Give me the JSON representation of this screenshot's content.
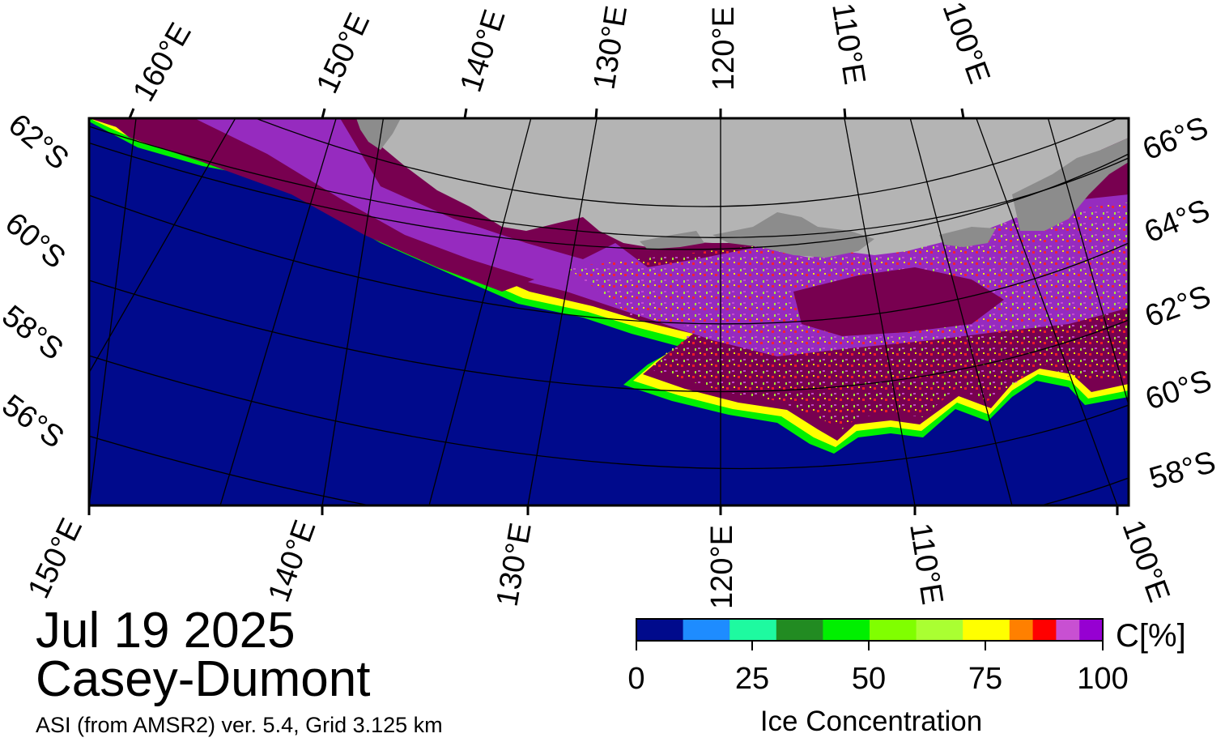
{
  "title": {
    "date": "Jul 19 2025",
    "region": "Casey-Dumont",
    "source": "ASI (from AMSR2) ver. 5.4,  Grid 3.125 km"
  },
  "map": {
    "top_longitude_labels": [
      "160°E",
      "150°E",
      "140°E",
      "130°E",
      "120°E",
      "110°E",
      "100°E"
    ],
    "bottom_longitude_labels": [
      "150°E",
      "140°E",
      "130°E",
      "120°E",
      "110°E",
      "100°E"
    ],
    "left_latitude_labels": [
      "62°S",
      "60°S",
      "58°S",
      "56°S"
    ],
    "right_latitude_labels": [
      "66°S",
      "64°S",
      "62°S",
      "60°S",
      "58°S"
    ],
    "colors": {
      "open_water": "#000a8c",
      "land": "#b4b4b4",
      "land_ice": "#8c8c8c",
      "ice_high": "#780050",
      "ice_purple": "#9b32d2"
    }
  },
  "colorbar": {
    "label": "Ice Concentration",
    "unit": "C[%]",
    "tick_labels": [
      "0",
      "25",
      "50",
      "75",
      "100"
    ],
    "bins": [
      {
        "from": 0,
        "to": 10,
        "color": "#000a8c"
      },
      {
        "from": 10,
        "to": 20,
        "color": "#1e8cff"
      },
      {
        "from": 20,
        "to": 30,
        "color": "#1efaa0"
      },
      {
        "from": 30,
        "to": 40,
        "color": "#228b22"
      },
      {
        "from": 40,
        "to": 50,
        "color": "#00f000"
      },
      {
        "from": 50,
        "to": 60,
        "color": "#80ff00"
      },
      {
        "from": 60,
        "to": 70,
        "color": "#aaff32"
      },
      {
        "from": 70,
        "to": 80,
        "color": "#ffff00"
      },
      {
        "from": 80,
        "to": 85,
        "color": "#ff8000"
      },
      {
        "from": 85,
        "to": 90,
        "color": "#ff0000"
      },
      {
        "from": 90,
        "to": 95,
        "color": "#c850d2"
      },
      {
        "from": 95,
        "to": 100,
        "color": "#9600d2"
      }
    ]
  }
}
